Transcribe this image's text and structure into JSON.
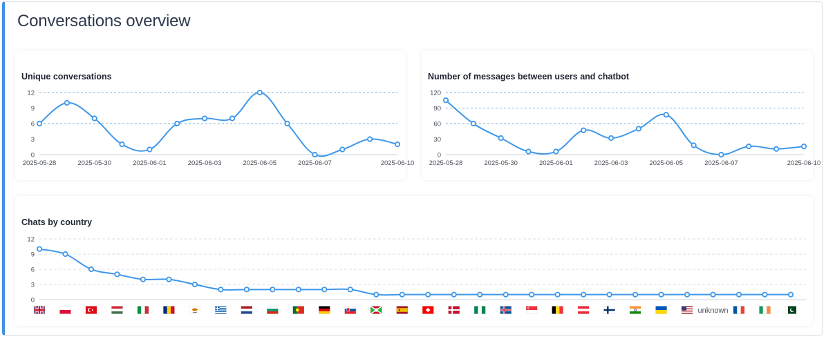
{
  "page": {
    "title": "Conversations overview"
  },
  "colors": {
    "accent": "#3f8fe4",
    "line": "#3d97ea",
    "grid": "#6fa9d8",
    "axis_text": "#4a4f57"
  },
  "chart_data": [
    {
      "id": "unique",
      "type": "line",
      "title": "Unique conversations",
      "x": [
        "2025-05-28",
        "2025-05-29",
        "2025-05-30",
        "2025-05-31",
        "2025-06-01",
        "2025-06-02",
        "2025-06-03",
        "2025-06-04",
        "2025-06-05",
        "2025-06-06",
        "2025-06-07",
        "2025-06-08",
        "2025-06-09",
        "2025-06-10"
      ],
      "values": [
        6,
        10,
        7,
        2,
        1,
        6,
        7,
        7,
        12,
        6,
        0,
        1,
        3,
        2
      ],
      "x_tick_labels": [
        "2025-05-28",
        "2025-05-30",
        "2025-06-01",
        "2025-06-03",
        "2025-06-05",
        "2025-06-07",
        "2025-06-10"
      ],
      "y_ticks": [
        0,
        3,
        6,
        9,
        12
      ],
      "ylim": [
        0,
        12
      ],
      "grid": "dashed at 6 and 12"
    },
    {
      "id": "messages",
      "type": "line",
      "title": "Number of messages between users and chatbot",
      "x": [
        "2025-05-28",
        "2025-05-29",
        "2025-05-30",
        "2025-05-31",
        "2025-06-01",
        "2025-06-02",
        "2025-06-03",
        "2025-06-04",
        "2025-06-05",
        "2025-06-06",
        "2025-06-07",
        "2025-06-08",
        "2025-06-09",
        "2025-06-10"
      ],
      "values": [
        105,
        60,
        32,
        6,
        6,
        47,
        32,
        50,
        77,
        18,
        0,
        16,
        11,
        16
      ],
      "x_tick_labels": [
        "2025-05-28",
        "2025-05-30",
        "2025-06-01",
        "2025-06-03",
        "2025-06-05",
        "2025-06-07",
        "2025-06-10"
      ],
      "y_ticks": [
        0,
        30,
        60,
        90,
        120
      ],
      "ylim": [
        0,
        120
      ],
      "grid": "dashed at 60, 90 and 120"
    },
    {
      "id": "country",
      "type": "line",
      "title": "Chats by country",
      "categories": [
        "GB",
        "PL",
        "TR",
        "HU",
        "IT",
        "RO",
        "CY",
        "GR",
        "NL",
        "BG",
        "PT",
        "DE",
        "SK",
        "BI",
        "ES",
        "CH",
        "DK",
        "NG",
        "IS",
        "SG",
        "BE",
        "AT",
        "FI",
        "IN",
        "UA",
        "US",
        "unknown",
        "FR",
        "IE",
        "PK"
      ],
      "category_labels_shown": [
        "unknown"
      ],
      "values": [
        10,
        9,
        6,
        5,
        4,
        4,
        3,
        2,
        2,
        2,
        2,
        2,
        2,
        1,
        1,
        1,
        1,
        1,
        1,
        1,
        1,
        1,
        1,
        1,
        1,
        1,
        1,
        1,
        1,
        1
      ],
      "y_ticks": [
        0,
        3,
        6,
        9,
        12
      ],
      "ylim": [
        0,
        12
      ],
      "grid": "light dashed on every tick"
    }
  ]
}
